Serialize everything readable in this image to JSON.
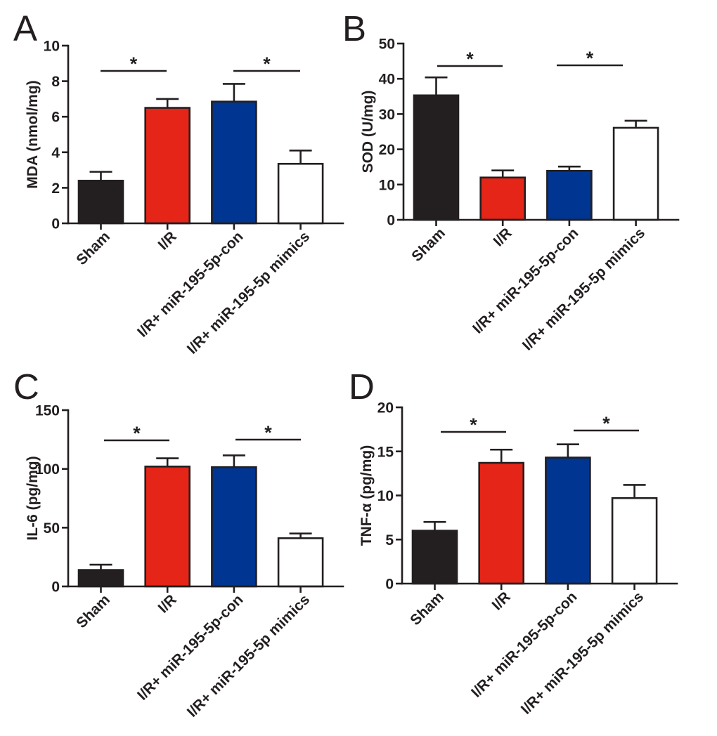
{
  "chart_data": [
    {
      "panel": "A",
      "type": "bar",
      "title": "",
      "xlabel": "",
      "ylabel": "MDA (nmol/mg)",
      "categories": [
        "Sham",
        "I/R",
        "I/R+ miR-195-5p-con",
        "I/R+ miR-195-5p mimics"
      ],
      "values": [
        2.4,
        6.5,
        6.85,
        3.35
      ],
      "errors": [
        0.5,
        0.5,
        1.0,
        0.75
      ],
      "ylim": [
        0,
        10
      ],
      "yticks": [
        0,
        2,
        4,
        6,
        8,
        10
      ],
      "grid": false,
      "bar_colors": [
        "#231f20",
        "#e42518",
        "#003591",
        "#ffffff"
      ],
      "annotations": [
        {
          "from": 0,
          "to": 1,
          "label": "*"
        },
        {
          "from": 2,
          "to": 3,
          "label": "*"
        }
      ]
    },
    {
      "panel": "B",
      "type": "bar",
      "title": "",
      "xlabel": "",
      "ylabel": "SOD (U/mg)",
      "categories": [
        "Sham",
        "I/R",
        "I/R+ miR-195-5p-con",
        "I/R+ miR-195-5p mimics"
      ],
      "values": [
        35.3,
        12.0,
        13.9,
        26.1
      ],
      "errors": [
        5.1,
        2.0,
        1.2,
        2.0
      ],
      "ylim": [
        0,
        50
      ],
      "yticks": [
        0,
        10,
        20,
        30,
        40,
        50
      ],
      "grid": false,
      "bar_colors": [
        "#231f20",
        "#e42518",
        "#003591",
        "#ffffff"
      ],
      "annotations": [
        {
          "from": 0,
          "to": 1,
          "label": "*"
        },
        {
          "from": 2,
          "to": 3,
          "label": "*"
        }
      ]
    },
    {
      "panel": "C",
      "type": "bar",
      "title": "",
      "xlabel": "",
      "ylabel": "IL-6 (pg/mg)",
      "categories": [
        "Sham",
        "I/R",
        "I/R+ miR-195-5p-con",
        "I/R+ miR-195-5p mimics"
      ],
      "values": [
        14,
        102,
        101.5,
        41
      ],
      "errors": [
        4.5,
        7,
        10,
        4
      ],
      "ylim": [
        0,
        150
      ],
      "yticks": [
        0,
        50,
        100,
        150
      ],
      "grid": false,
      "bar_colors": [
        "#231f20",
        "#e42518",
        "#003591",
        "#ffffff"
      ],
      "annotations": [
        {
          "from": 0,
          "to": 1,
          "label": "*"
        },
        {
          "from": 2,
          "to": 3,
          "label": "*"
        }
      ]
    },
    {
      "panel": "D",
      "type": "bar",
      "title": "",
      "xlabel": "",
      "ylabel": "TNF-α (pg/mg)",
      "categories": [
        "Sham",
        "I/R",
        "I/R+ miR-195-5p-con",
        "I/R+ miR-195-5p mimics"
      ],
      "values": [
        6.0,
        13.7,
        14.3,
        9.7
      ],
      "errors": [
        1.0,
        1.5,
        1.5,
        1.5
      ],
      "ylim": [
        0,
        20
      ],
      "yticks": [
        0,
        5,
        10,
        15,
        20
      ],
      "grid": false,
      "bar_colors": [
        "#231f20",
        "#e42518",
        "#003591",
        "#ffffff"
      ],
      "annotations": [
        {
          "from": 0,
          "to": 1,
          "label": "*"
        },
        {
          "from": 2,
          "to": 3,
          "label": "*"
        }
      ]
    }
  ]
}
